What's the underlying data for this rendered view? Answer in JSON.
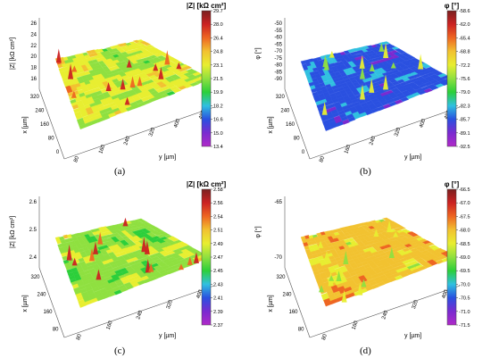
{
  "chart_data": [
    {
      "panel": "a",
      "type": "heatmap",
      "caption": "(a)",
      "zlabel": "|Z| [kΩ cm²]",
      "colorbar_title": "|Z| [kΩ cm²]",
      "colorbar_ticks": [
        "29.7",
        "28.0",
        "26.4",
        "24.8",
        "23.1",
        "21.5",
        "19.9",
        "18.2",
        "16.6",
        "15.0",
        "13.4"
      ],
      "zlim": [
        13.4,
        29.7
      ],
      "ztick_labels": [
        "26",
        "24",
        "22",
        "20",
        "18",
        "16"
      ],
      "xlabel": "x [µm]",
      "xtick_labels": [
        "320",
        "240",
        "160",
        "80",
        "0"
      ],
      "ylabel": "y [µm]",
      "ytick_labels": [
        "80",
        "160",
        "240",
        "320",
        "400",
        "480"
      ],
      "colors": [
        "#7a1f1f",
        "#cc2222",
        "#ee6622",
        "#f2c230",
        "#e8ee30",
        "#8fe040",
        "#2ccf3a",
        "#30c0e0",
        "#2a50e0",
        "#7a2ad0",
        "#b02ac8"
      ]
    },
    {
      "panel": "b",
      "type": "heatmap",
      "caption": "(b)",
      "zlabel": "φ [°]",
      "colorbar_title": "φ [°]",
      "colorbar_ticks": [
        "-58.6",
        "-62.0",
        "-65.4",
        "-68.8",
        "-72.2",
        "-75.6",
        "-79.0",
        "-82.3",
        "-85.7",
        "-89.1",
        "-92.5"
      ],
      "zlim": [
        -92.5,
        -58.6
      ],
      "ztick_labels": [
        "-50",
        "-55",
        "-60",
        "-65",
        "-70",
        "-75",
        "-80",
        "-85",
        "-90"
      ],
      "xlabel": "x [µm]",
      "xtick_labels": [
        "320",
        "240",
        "160",
        "80",
        "0"
      ],
      "ylabel": "y [µm]",
      "ytick_labels": [
        "80",
        "160",
        "240",
        "320",
        "400",
        "480"
      ],
      "colors": [
        "#7a1f1f",
        "#cc2222",
        "#ee6622",
        "#f2c230",
        "#e8ee30",
        "#8fe040",
        "#2ccf3a",
        "#30c0e0",
        "#2a50e0",
        "#7a2ad0",
        "#b02ac8"
      ]
    },
    {
      "panel": "c",
      "type": "heatmap",
      "caption": "(c)",
      "zlabel": "|Z| [kΩ cm²]",
      "colorbar_title": "|Z| [kΩ cm²]",
      "colorbar_ticks": [
        "2.58",
        "2.56",
        "2.54",
        "2.51",
        "2.49",
        "2.47",
        "2.45",
        "2.43",
        "2.41",
        "2.39",
        "2.37"
      ],
      "zlim": [
        2.37,
        2.58
      ],
      "ztick_labels": [
        "2.6",
        "2.5",
        "2.4"
      ],
      "xlabel": "x [µm]",
      "xtick_labels": [
        "320",
        "240",
        "160",
        "80"
      ],
      "ylabel": "y [µm]",
      "ytick_labels": [
        "80",
        "160",
        "240",
        "320",
        "400"
      ],
      "colors": [
        "#7a1f1f",
        "#cc2222",
        "#ee6622",
        "#f2c230",
        "#e8ee30",
        "#8fe040",
        "#2ccf3a",
        "#30c0e0",
        "#2a50e0",
        "#7a2ad0",
        "#b02ac8"
      ]
    },
    {
      "panel": "d",
      "type": "heatmap",
      "caption": "(d)",
      "zlabel": "φ [°]",
      "colorbar_title": "φ [°]",
      "colorbar_ticks": [
        "-66.5",
        "-67.0",
        "-67.5",
        "-68.0",
        "-68.5",
        "-69.0",
        "-69.5",
        "-70.0",
        "-70.5",
        "-71.0",
        "-71.5"
      ],
      "zlim": [
        -71.5,
        -66.5
      ],
      "ztick_labels": [
        "-65",
        "-70"
      ],
      "xlabel": "x [µm]",
      "xtick_labels": [
        "320",
        "240",
        "160",
        "80"
      ],
      "ylabel": "y [µm]",
      "ytick_labels": [
        "80",
        "160",
        "240",
        "320",
        "400"
      ],
      "colors": [
        "#7a1f1f",
        "#cc2222",
        "#ee6622",
        "#f2c230",
        "#e8ee30",
        "#8fe040",
        "#2ccf3a",
        "#30c0e0",
        "#2a50e0",
        "#7a2ad0",
        "#b02ac8"
      ]
    }
  ]
}
